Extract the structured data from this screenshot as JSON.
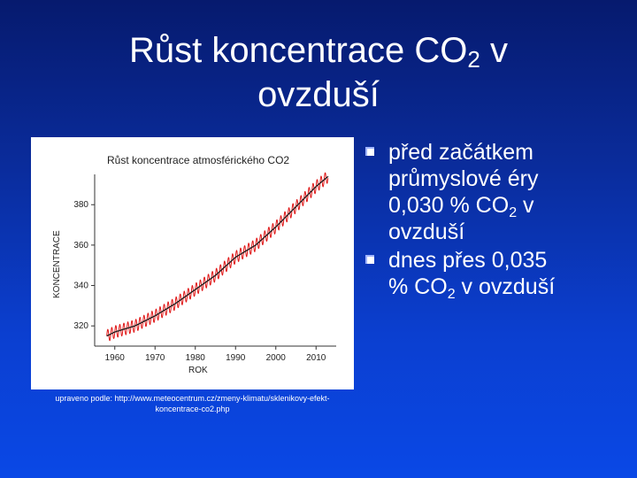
{
  "slide": {
    "title_part1": "Růst koncentrace CO",
    "title_sub": "2",
    "title_part2": " v",
    "title_line2": "ovzduší",
    "source_line1": "upraveno podle: http://www.meteocentrum.cz/zmeny-klimatu/sklenikovy-efekt-",
    "source_line2": "koncentrace-co2.php",
    "bullets": [
      {
        "line1": "před začátkem",
        "line2": "průmyslové éry",
        "line3_pre": "0,030 % CO",
        "line3_sub": "2",
        "line3_post": " v",
        "line4": "ovzduší"
      },
      {
        "line1": "dnes přes 0,035",
        "line2_pre": "% CO",
        "line2_sub": "2",
        "line2_post": " v ovzduší"
      }
    ]
  },
  "colors": {
    "bg_top": "#061a6e",
    "bg_bottom": "#0a48e6",
    "monthly_line": "#e01818",
    "trend_line": "#1a1a1a"
  },
  "chart_data": {
    "type": "line",
    "title": "Růst koncentrace atmosférického CO2",
    "xlabel": "ROK",
    "ylabel": "KONCENTRACE",
    "xlim": [
      1955,
      2015
    ],
    "ylim": [
      310,
      395
    ],
    "x_ticks": [
      "1960",
      "1970",
      "1980",
      "1990",
      "2000",
      "2010"
    ],
    "y_ticks": [
      "320",
      "340",
      "360",
      "380"
    ],
    "grid": false,
    "series": [
      {
        "style": "monthly (red, seasonal oscillation ~±3)",
        "seasonal_amplitude": 3,
        "x": [
          1958,
          1960,
          1965,
          1970,
          1975,
          1980,
          1985,
          1990,
          1995,
          2000,
          2005,
          2010,
          2013
        ],
        "y": [
          315,
          317,
          320,
          325,
          331,
          338,
          345,
          354,
          360,
          369,
          379,
          389,
          394
        ]
      },
      {
        "style": "trend (dark)",
        "x": [
          1958,
          1960,
          1965,
          1970,
          1975,
          1980,
          1985,
          1990,
          1995,
          2000,
          2005,
          2010,
          2013
        ],
        "y": [
          315,
          317,
          320,
          325,
          331,
          338,
          345,
          354,
          360,
          369,
          379,
          389,
          394
        ]
      }
    ]
  }
}
